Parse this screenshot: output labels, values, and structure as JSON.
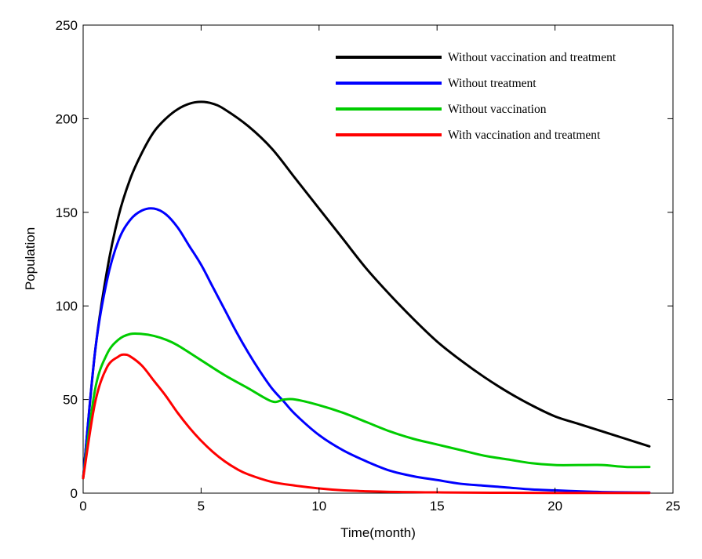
{
  "chart_data": {
    "type": "line",
    "title": "",
    "xlabel": "Time(month)",
    "ylabel": "Population",
    "xlim": [
      0,
      25
    ],
    "ylim": [
      0,
      250
    ],
    "xticks": [
      0,
      5,
      10,
      15,
      20,
      25
    ],
    "yticks": [
      0,
      50,
      100,
      150,
      200,
      250
    ],
    "grid": false,
    "legend_position": "top-right",
    "series": [
      {
        "name": "Without vaccination and treatment",
        "color": "#000000",
        "x": [
          0,
          0.5,
          1,
          1.5,
          2,
          2.5,
          3,
          3.5,
          4,
          4.5,
          5,
          5.5,
          6,
          7,
          8,
          9,
          10,
          11,
          12,
          13,
          14,
          15,
          16,
          17,
          18,
          19,
          20,
          21,
          22,
          23,
          24
        ],
        "y": [
          8,
          75,
          118,
          148,
          168,
          182,
          193,
          200,
          205,
          208,
          209,
          208,
          205,
          196,
          184,
          168,
          152,
          136,
          120,
          106,
          93,
          81,
          71,
          62,
          54,
          47,
          41,
          37,
          33,
          29,
          25
        ]
      },
      {
        "name": "Without treatment",
        "color": "#0000ff",
        "x": [
          0,
          0.5,
          1,
          1.5,
          2,
          2.5,
          3,
          3.5,
          4,
          4.5,
          5,
          5.5,
          6,
          6.5,
          7,
          7.5,
          8,
          8.5,
          9,
          10,
          11,
          12,
          13,
          14,
          15,
          16,
          17,
          18,
          19,
          20,
          21,
          22,
          23,
          24
        ],
        "y": [
          8,
          75,
          113,
          135,
          146,
          151,
          152,
          149,
          142,
          132,
          122,
          110,
          98,
          86,
          75,
          65,
          56,
          49,
          42,
          31,
          23,
          17,
          12,
          9,
          7,
          5,
          4,
          3,
          2,
          1.5,
          1,
          0.6,
          0.4,
          0.3
        ]
      },
      {
        "name": "Without vaccination",
        "color": "#00cc00",
        "x": [
          0,
          0.5,
          1,
          1.5,
          2,
          2.5,
          3,
          3.5,
          4,
          5,
          6,
          7,
          8,
          8.5,
          9,
          10,
          11,
          12,
          13,
          14,
          15,
          16,
          17,
          18,
          19,
          20,
          21,
          22,
          23,
          24
        ],
        "y": [
          8,
          55,
          74,
          82,
          85,
          85,
          84,
          82,
          79,
          71,
          63,
          56,
          49,
          50,
          50,
          47,
          43,
          38,
          33,
          29,
          26,
          23,
          20,
          18,
          16,
          15,
          15,
          15,
          14,
          14
        ]
      },
      {
        "name": "With vaccination and treatment",
        "color": "#ff0000",
        "x": [
          0,
          0.5,
          1,
          1.5,
          1.75,
          2,
          2.5,
          3,
          3.5,
          4,
          4.5,
          5,
          5.5,
          6,
          6.5,
          7,
          8,
          9,
          10,
          11,
          12,
          13,
          14,
          15,
          16,
          18,
          20,
          22,
          24
        ],
        "y": [
          8,
          48,
          67,
          73,
          74,
          73,
          68,
          60,
          52,
          43,
          35,
          28,
          22,
          17,
          13,
          10,
          6,
          4,
          2.5,
          1.5,
          1,
          0.7,
          0.5,
          0.4,
          0.3,
          0.2,
          0.1,
          0.1,
          0.1
        ]
      }
    ]
  }
}
